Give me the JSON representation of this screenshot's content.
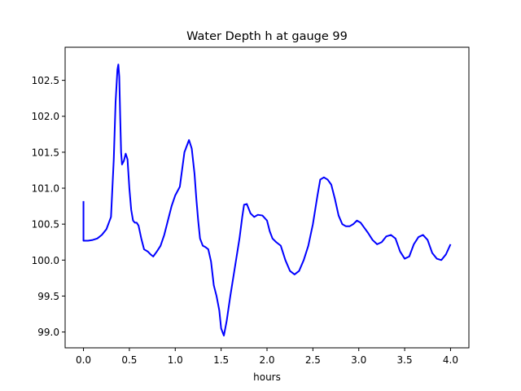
{
  "chart_data": {
    "type": "line",
    "title": "Water Depth h at gauge 99",
    "xlabel": "hours",
    "ylabel": "",
    "xlim": [
      -0.2,
      4.2
    ],
    "ylim": [
      98.78,
      102.96
    ],
    "xticks": [
      0.0,
      0.5,
      1.0,
      1.5,
      2.0,
      2.5,
      3.0,
      3.5,
      4.0
    ],
    "xtick_labels": [
      "0.0",
      "0.5",
      "1.0",
      "1.5",
      "2.0",
      "2.5",
      "3.0",
      "3.5",
      "4.0"
    ],
    "yticks": [
      99.0,
      99.5,
      100.0,
      100.5,
      101.0,
      101.5,
      102.0,
      102.5
    ],
    "ytick_labels": [
      "99.0",
      "99.5",
      "100.0",
      "100.5",
      "101.0",
      "101.5",
      "102.0",
      "102.5"
    ],
    "grid": false,
    "series": [
      {
        "color": "#0000ff",
        "x": [
          0.0,
          0.0,
          0.05,
          0.1,
          0.15,
          0.2,
          0.25,
          0.3,
          0.33,
          0.35,
          0.37,
          0.38,
          0.39,
          0.4,
          0.41,
          0.42,
          0.44,
          0.46,
          0.48,
          0.5,
          0.52,
          0.54,
          0.56,
          0.58,
          0.6,
          0.63,
          0.66,
          0.7,
          0.73,
          0.76,
          0.8,
          0.84,
          0.88,
          0.92,
          0.96,
          1.0,
          1.05,
          1.1,
          1.15,
          1.18,
          1.21,
          1.23,
          1.25,
          1.27,
          1.3,
          1.33,
          1.36,
          1.39,
          1.42,
          1.45,
          1.48,
          1.5,
          1.53,
          1.56,
          1.6,
          1.65,
          1.7,
          1.73,
          1.75,
          1.78,
          1.82,
          1.86,
          1.9,
          1.95,
          2.0,
          2.03,
          2.06,
          2.1,
          2.15,
          2.2,
          2.25,
          2.3,
          2.35,
          2.4,
          2.45,
          2.5,
          2.55,
          2.58,
          2.62,
          2.66,
          2.7,
          2.74,
          2.78,
          2.82,
          2.86,
          2.9,
          2.94,
          2.98,
          3.02,
          3.06,
          3.1,
          3.15,
          3.2,
          3.25,
          3.3,
          3.35,
          3.4,
          3.45,
          3.5,
          3.55,
          3.6,
          3.65,
          3.7,
          3.75,
          3.8,
          3.85,
          3.9,
          3.95,
          4.0
        ],
        "y": [
          100.82,
          100.27,
          100.27,
          100.28,
          100.3,
          100.35,
          100.43,
          100.6,
          101.4,
          102.2,
          102.65,
          102.72,
          102.55,
          102.0,
          101.5,
          101.33,
          101.38,
          101.48,
          101.4,
          101.0,
          100.7,
          100.55,
          100.52,
          100.52,
          100.48,
          100.3,
          100.15,
          100.12,
          100.08,
          100.05,
          100.12,
          100.2,
          100.35,
          100.55,
          100.75,
          100.9,
          101.02,
          101.5,
          101.67,
          101.55,
          101.2,
          100.85,
          100.55,
          100.3,
          100.2,
          100.18,
          100.15,
          99.98,
          99.65,
          99.5,
          99.3,
          99.05,
          98.95,
          99.15,
          99.5,
          99.9,
          100.3,
          100.6,
          100.77,
          100.78,
          100.65,
          100.6,
          100.63,
          100.62,
          100.55,
          100.4,
          100.3,
          100.25,
          100.2,
          100.0,
          99.85,
          99.8,
          99.85,
          100.0,
          100.2,
          100.5,
          100.9,
          101.12,
          101.15,
          101.12,
          101.05,
          100.85,
          100.62,
          100.5,
          100.47,
          100.47,
          100.5,
          100.55,
          100.52,
          100.45,
          100.38,
          100.28,
          100.22,
          100.25,
          100.33,
          100.35,
          100.3,
          100.12,
          100.02,
          100.05,
          100.22,
          100.32,
          100.35,
          100.28,
          100.1,
          100.02,
          100.0,
          100.08,
          100.22
        ]
      }
    ]
  }
}
